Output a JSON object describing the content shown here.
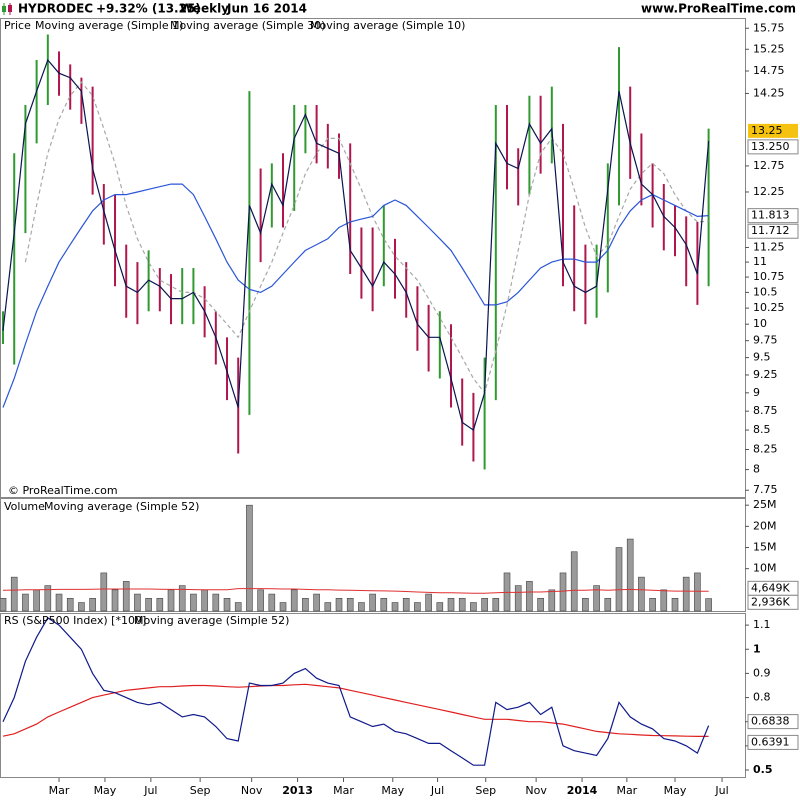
{
  "chart_data": [
    {
      "type": "price",
      "title": "HYDRODEC",
      "subtitle": "+9.32% (13.25)",
      "frequency": "Weekly",
      "date": "Jun 16 2014",
      "source": "www.ProRealTime.com",
      "copyright": "© ProRealTime.com",
      "price_label": "Price",
      "log_scale": true,
      "up_color": "#2f9a2f",
      "down_color": "#b0164c",
      "last_color": "#f5c20f",
      "ylim": [
        7.67,
        16.0
      ],
      "yticks": [
        15.75,
        15.25,
        14.75,
        14.25,
        12.75,
        12.25,
        11.25,
        11,
        10.75,
        10.5,
        10.25,
        10,
        9.75,
        9.5,
        9.25,
        9,
        8.75,
        8.5,
        8.25,
        8,
        7.75
      ],
      "xlim": [
        -0.27,
        66.25
      ],
      "xticks": [
        {
          "value": 5.0,
          "label": "Mar"
        },
        {
          "value": 9.1,
          "label": "May"
        },
        {
          "value": 13.2,
          "label": "Jul"
        },
        {
          "value": 17.6,
          "label": "Sep"
        },
        {
          "value": 22.2,
          "label": "Nov"
        },
        {
          "value": 26.3,
          "label": "2013"
        },
        {
          "value": 30.4,
          "label": "Mar"
        },
        {
          "value": 34.8,
          "label": "May"
        },
        {
          "value": 38.8,
          "label": "Jul"
        },
        {
          "value": 43.1,
          "label": "Sep"
        },
        {
          "value": 47.6,
          "label": "Nov"
        },
        {
          "value": 51.7,
          "label": "2014"
        },
        {
          "value": 55.7,
          "label": "Mar"
        },
        {
          "value": 60.0,
          "label": "May"
        },
        {
          "value": 64.2,
          "label": "Jul"
        }
      ],
      "high": [
        10.2,
        13.0,
        14.0,
        15.0,
        15.6,
        15.2,
        14.9,
        14.6,
        14.4,
        12.4,
        12.2,
        11.3,
        11.0,
        11.2,
        10.9,
        10.8,
        10.9,
        10.9,
        10.6,
        10.2,
        9.8,
        9.5,
        14.3,
        12.7,
        12.8,
        13.0,
        14.0,
        14.0,
        14.0,
        13.6,
        13.4,
        13.2,
        11.6,
        11.6,
        12.0,
        11.4,
        11.0,
        10.6,
        10.3,
        10.2,
        10.0,
        9.2,
        9.0,
        9.5,
        14.0,
        14.0,
        13.1,
        14.2,
        14.2,
        14.4,
        13.6,
        12.0,
        11.3,
        11.3,
        12.8,
        15.3,
        14.4,
        13.4,
        12.8,
        12.4,
        12.0,
        11.8,
        11.7,
        13.5
      ],
      "low": [
        9.7,
        9.4,
        11.5,
        13.2,
        14.0,
        14.2,
        13.9,
        13.6,
        12.2,
        11.3,
        10.6,
        10.1,
        10.0,
        10.2,
        10.2,
        10.0,
        10.0,
        10.0,
        9.8,
        9.4,
        8.9,
        8.2,
        8.7,
        11.0,
        11.6,
        11.6,
        11.9,
        13.0,
        12.8,
        12.7,
        12.5,
        10.8,
        10.4,
        10.2,
        10.6,
        10.4,
        10.1,
        9.6,
        9.3,
        9.2,
        8.8,
        8.3,
        8.1,
        8.0,
        8.9,
        12.3,
        12.0,
        12.2,
        12.6,
        12.8,
        10.6,
        10.2,
        10.0,
        10.1,
        10.5,
        12.0,
        12.5,
        12.0,
        11.6,
        11.2,
        11.1,
        10.6,
        10.3,
        10.6
      ],
      "series": [
        {
          "name": "Moving average (Simple 1)",
          "color": "#0a1450",
          "last_label": "13.250",
          "values": [
            9.9,
            11.5,
            13.6,
            14.3,
            15.0,
            14.7,
            14.6,
            14.3,
            12.7,
            11.9,
            11.2,
            10.6,
            10.5,
            10.7,
            10.6,
            10.4,
            10.4,
            10.5,
            10.2,
            9.8,
            9.3,
            8.8,
            12.0,
            11.5,
            12.4,
            12.0,
            13.3,
            13.8,
            13.2,
            13.1,
            13.0,
            11.2,
            10.9,
            10.6,
            11.0,
            10.8,
            10.5,
            10.0,
            9.8,
            9.8,
            9.2,
            8.6,
            8.5,
            9.0,
            13.2,
            12.8,
            12.7,
            13.6,
            13.2,
            13.5,
            11.0,
            10.6,
            10.5,
            10.6,
            12.3,
            14.3,
            13.2,
            12.4,
            12.2,
            11.8,
            11.6,
            11.3,
            10.8,
            13.25
          ]
        },
        {
          "name": "Moving average (Simple 30)",
          "color": "#2a55d8",
          "values": [
            8.8,
            9.2,
            9.7,
            10.2,
            10.6,
            11.0,
            11.3,
            11.6,
            11.9,
            12.1,
            12.2,
            12.2,
            12.25,
            12.3,
            12.35,
            12.4,
            12.4,
            12.2,
            11.8,
            11.4,
            11.0,
            10.7,
            10.55,
            10.5,
            10.6,
            10.8,
            11.0,
            11.2,
            11.3,
            11.4,
            11.6,
            11.7,
            11.75,
            11.8,
            12.0,
            12.1,
            12.0,
            11.8,
            11.6,
            11.4,
            11.2,
            10.9,
            10.6,
            10.3,
            10.3,
            10.35,
            10.5,
            10.7,
            10.9,
            11.0,
            11.05,
            11.05,
            11.0,
            11.0,
            11.2,
            11.6,
            11.9,
            12.1,
            12.2,
            12.1,
            12.0,
            11.9,
            11.8,
            11.813
          ]
        },
        {
          "name": "Moving average (Simple 10)",
          "color": "#a8a8a8",
          "dashed": true,
          "values": [
            null,
            null,
            11.0,
            12.0,
            13.0,
            13.7,
            14.2,
            14.5,
            14.2,
            13.5,
            12.8,
            12.0,
            11.4,
            11.0,
            10.7,
            10.6,
            10.5,
            10.5,
            10.4,
            10.2,
            10.0,
            9.8,
            10.2,
            10.6,
            11.0,
            11.5,
            12.0,
            12.6,
            13.0,
            13.3,
            13.3,
            12.8,
            12.3,
            11.8,
            11.4,
            11.1,
            10.9,
            10.7,
            10.4,
            10.1,
            9.8,
            9.5,
            9.2,
            9.0,
            9.6,
            10.3,
            11.2,
            12.2,
            13.0,
            13.3,
            13.0,
            12.3,
            11.6,
            11.1,
            11.3,
            11.8,
            12.3,
            12.6,
            12.8,
            12.6,
            12.2,
            11.9,
            11.7,
            11.712
          ]
        }
      ]
    },
    {
      "type": "volume",
      "title": "Volume",
      "color": "#9a9a9a",
      "last_label": "2,936K",
      "ylim": [
        0,
        26.7
      ],
      "yticks": [
        {
          "value": 25,
          "label": "25M"
        },
        {
          "value": 20,
          "label": "20M"
        },
        {
          "value": 15,
          "label": "15M"
        },
        {
          "value": 10,
          "label": "10M"
        }
      ],
      "values": [
        3,
        8,
        4,
        5,
        6,
        4,
        3,
        2,
        3,
        9,
        5,
        7,
        4,
        3,
        3,
        5,
        6,
        4,
        5,
        4,
        3,
        2,
        25,
        5,
        4,
        2,
        5,
        3,
        4,
        2,
        3,
        3,
        2,
        4,
        3,
        2,
        3,
        2,
        4,
        2,
        3,
        3,
        2,
        3,
        3,
        9,
        6,
        7,
        3,
        5,
        9,
        14,
        3,
        6,
        3,
        15,
        17,
        8,
        3,
        5,
        3,
        8,
        9,
        2.936
      ],
      "series": [
        {
          "name": "Moving average (Simple 52)",
          "color": "#e03030",
          "last_label": "4,649K",
          "values": [
            4.9,
            4.95,
            5.0,
            5.0,
            5.05,
            5.1,
            5.1,
            5.1,
            5.15,
            5.2,
            5.2,
            5.2,
            5.2,
            5.2,
            5.15,
            5.1,
            5.1,
            5.05,
            5.0,
            5.0,
            5.0,
            5.3,
            5.3,
            5.3,
            5.25,
            5.2,
            5.2,
            5.1,
            5.0,
            5.0,
            4.95,
            4.9,
            4.85,
            4.8,
            4.75,
            4.7,
            4.6,
            4.5,
            4.4,
            4.3,
            4.3,
            4.25,
            4.2,
            4.2,
            4.3,
            4.4,
            4.4,
            4.5,
            4.5,
            4.6,
            4.7,
            4.9,
            4.9,
            5.0,
            4.9,
            5.0,
            5.1,
            5.0,
            4.9,
            4.8,
            4.7,
            4.7,
            4.65,
            4.649
          ]
        }
      ]
    },
    {
      "type": "line",
      "ylim": [
        0.471,
        1.146
      ],
      "yticks": [
        1.1,
        1,
        0.9,
        0.8,
        0.7,
        0.6,
        0.5
      ],
      "series": [
        {
          "name": "RS (S&P500 Index) [*100]",
          "color": "#101a8a",
          "values": [
            0.7,
            0.8,
            0.95,
            1.05,
            1.13,
            1.1,
            1.05,
            1.0,
            0.9,
            0.83,
            0.82,
            0.8,
            0.78,
            0.77,
            0.78,
            0.75,
            0.72,
            0.73,
            0.72,
            0.68,
            0.63,
            0.62,
            0.86,
            0.85,
            0.85,
            0.86,
            0.9,
            0.92,
            0.88,
            0.86,
            0.85,
            0.72,
            0.7,
            0.68,
            0.69,
            0.66,
            0.65,
            0.63,
            0.61,
            0.61,
            0.58,
            0.55,
            0.52,
            0.52,
            0.78,
            0.75,
            0.76,
            0.78,
            0.73,
            0.76,
            0.6,
            0.58,
            0.57,
            0.56,
            0.63,
            0.78,
            0.72,
            0.69,
            0.67,
            0.63,
            0.62,
            0.6,
            0.57,
            0.6838
          ]
        },
        {
          "name": "Moving average (Simple 52)",
          "color": "#e02020",
          "values": [
            0.64,
            0.65,
            0.67,
            0.69,
            0.72,
            0.74,
            0.76,
            0.78,
            0.8,
            0.81,
            0.82,
            0.83,
            0.835,
            0.84,
            0.845,
            0.845,
            0.848,
            0.85,
            0.85,
            0.848,
            0.845,
            0.843,
            0.845,
            0.848,
            0.85,
            0.85,
            0.853,
            0.855,
            0.85,
            0.845,
            0.84,
            0.83,
            0.82,
            0.81,
            0.8,
            0.79,
            0.78,
            0.77,
            0.76,
            0.75,
            0.74,
            0.73,
            0.72,
            0.71,
            0.71,
            0.71,
            0.705,
            0.7,
            0.7,
            0.695,
            0.69,
            0.68,
            0.67,
            0.66,
            0.655,
            0.65,
            0.648,
            0.645,
            0.643,
            0.642,
            0.641,
            0.64,
            0.639,
            0.6391
          ]
        }
      ]
    }
  ]
}
